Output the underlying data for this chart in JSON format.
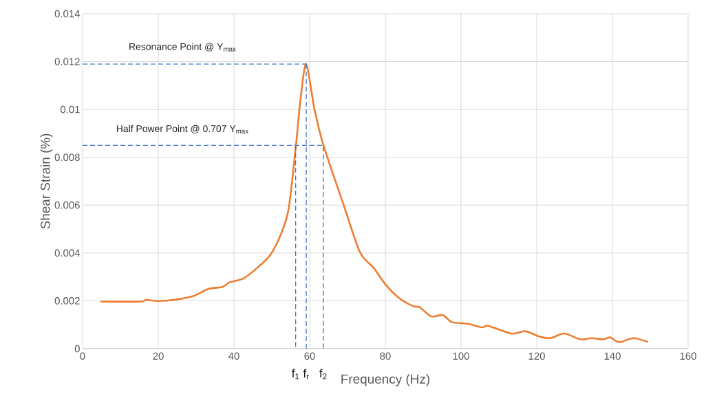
{
  "chart_data": {
    "type": "line",
    "xlabel": "Frequency (Hz)",
    "ylabel": "Shear Strain (%)",
    "xlim": [
      0,
      160
    ],
    "xticks": [
      0,
      20,
      40,
      60,
      80,
      100,
      120,
      140,
      160
    ],
    "ylim": [
      0,
      0.014
    ],
    "yticks": [
      0,
      0.002,
      0.004,
      0.006,
      0.008,
      0.01,
      0.012,
      0.014
    ],
    "grid": true,
    "legend": false,
    "marker": "none",
    "series": [
      {
        "color": "#ed7d31",
        "line_style": "solid",
        "x": [
          4.7,
          15.2,
          16.7,
          20,
          24.2,
          29.1,
          33.3,
          37,
          38.8,
          42.4,
          46,
          49.7,
          52.7,
          54.5,
          56.4,
          57.6,
          59.1,
          61.2,
          63.6,
          69.1,
          73.3,
          77,
          80,
          83.6,
          87.3,
          89.1,
          92.1,
          95.2,
          97.6,
          101.8,
          105.5,
          107.3,
          113.3,
          117,
          120.6,
          123.6,
          127.3,
          131.5,
          134.5,
          137.6,
          139.4,
          141.8,
          145.5,
          149.4
        ],
        "values": [
          0.00197,
          0.00197,
          0.00204,
          0.00199,
          0.00204,
          0.00219,
          0.0025,
          0.00258,
          0.00277,
          0.00293,
          0.00336,
          0.00394,
          0.0049,
          0.0059,
          0.00853,
          0.01045,
          0.0119,
          0.01007,
          0.00853,
          0.00595,
          0.00403,
          0.00336,
          0.00269,
          0.00212,
          0.00178,
          0.00173,
          0.00135,
          0.0014,
          0.00111,
          0.00104,
          0.00089,
          0.00095,
          0.00063,
          0.00073,
          0.00051,
          0.00044,
          0.00063,
          0.00039,
          0.00044,
          0.00039,
          0.00047,
          0.00027,
          0.00044,
          0.00028
        ]
      },
      {
        "color": "#4472c4",
        "line_style": "dashed",
        "x": [
          0,
          59.1
        ],
        "values": [
          0.0119,
          0.0119
        ]
      },
      {
        "color": "#4472c4",
        "line_style": "dashed",
        "x": [
          59.1,
          59.1
        ],
        "values": [
          0.0119,
          0
        ]
      },
      {
        "color": "#4472c4",
        "line_style": "dashed",
        "x": [
          0,
          63.6,
          63.6
        ],
        "values": [
          0.0085,
          0.0085,
          0
        ]
      },
      {
        "color": "#4472c4",
        "line_style": "dashed",
        "x": [
          56.3,
          56.3
        ],
        "values": [
          0.0085,
          0
        ]
      }
    ],
    "annotations": [
      "Resonance Point @ Υ$_{max}$",
      "Half Power Point @ 0.707 Υ$_{max}$",
      "f$_{1}$",
      "f$_{r}$",
      "f$_{2}$"
    ]
  }
}
